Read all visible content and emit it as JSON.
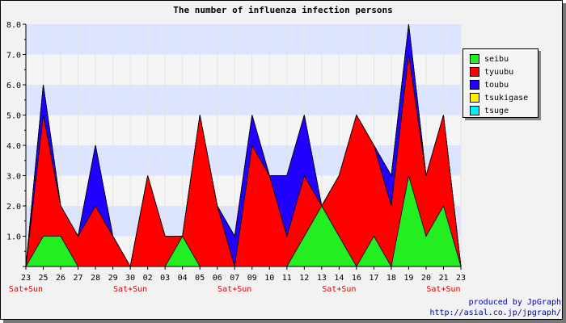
{
  "chart_data": {
    "type": "area",
    "title": "The number of influenza infection persons",
    "x": [
      "23",
      "25",
      "26",
      "27",
      "28",
      "29",
      "30",
      "02",
      "03",
      "04",
      "05",
      "06",
      "07",
      "09",
      "10",
      "11",
      "12",
      "13",
      "14",
      "16",
      "17",
      "18",
      "19",
      "20",
      "21",
      "23"
    ],
    "weekend_label": "Sat+Sun",
    "weekend_indices": [
      0,
      6,
      12,
      18,
      24
    ],
    "ylim": [
      0,
      8
    ],
    "yticks": [
      "1.0",
      "2.0",
      "3.0",
      "4.0",
      "5.0",
      "6.0",
      "7.0",
      "8.0"
    ],
    "stacked": true,
    "series": [
      {
        "name": "seibu",
        "color": "#22ee22",
        "values": [
          0,
          1,
          1,
          0,
          0,
          0,
          0,
          0,
          0,
          1,
          0,
          0,
          0,
          0,
          0,
          0,
          1,
          2,
          1,
          0,
          1,
          0,
          3,
          1,
          2,
          0
        ]
      },
      {
        "name": "tyuubu",
        "color": "#ff0000",
        "values": [
          0,
          4,
          1,
          1,
          2,
          1,
          0,
          3,
          1,
          0,
          5,
          2,
          0,
          4,
          3,
          1,
          2,
          0,
          2,
          5,
          3,
          2,
          4,
          2,
          3,
          0
        ]
      },
      {
        "name": "toubu",
        "color": "#2200ff",
        "values": [
          0,
          1,
          0,
          0,
          2,
          0,
          0,
          0,
          0,
          0,
          0,
          0,
          1,
          1,
          0,
          2,
          2,
          0,
          0,
          0,
          0,
          1,
          1,
          0,
          0,
          0
        ]
      },
      {
        "name": "tsukigase",
        "color": "#ffee00",
        "values": [
          0,
          0,
          0,
          0,
          0,
          0,
          0,
          0,
          0,
          0,
          0,
          0,
          0,
          0,
          0,
          0,
          0,
          0,
          0,
          0,
          0,
          0,
          0,
          0,
          0,
          0
        ]
      },
      {
        "name": "tsuge",
        "color": "#00eeff",
        "values": [
          0,
          0,
          0,
          0,
          0,
          0,
          0,
          0,
          0,
          0,
          0,
          0,
          0,
          0,
          0,
          0,
          0,
          0,
          0,
          0,
          0,
          0,
          0,
          0,
          0,
          0
        ]
      }
    ],
    "grid": true,
    "legend": "right"
  },
  "footer": {
    "line1": "produced by JpGraph",
    "line2": "http://asial.co.jp/jpgraph/"
  },
  "colors": {
    "band": "#dde4ff",
    "plot_bg": "#f5f5f5"
  }
}
